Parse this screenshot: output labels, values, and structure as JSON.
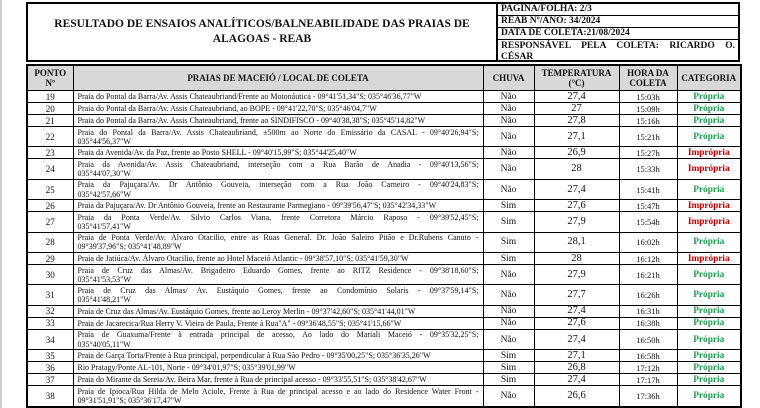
{
  "colors": {
    "propria_green": "#1e9e50",
    "impropria_red": "#c40000",
    "table_header_bg": "#d8d8d8",
    "border_black": "#000000"
  },
  "header": {
    "title": "RESULTADO DE ENSAIOS ANALÍTICOS/BALNEABILIDADE DAS PRAIAS DE ALAGOAS - REAB",
    "info_rows": [
      "PAGINA/FOLHA: 2/3",
      "REAB Nº/ANO: 34/2024",
      "DATA DE COLETA:21/08/2024",
      "RESPONSÁVEL PELA COLETA: RICARDO O. CÉSAR"
    ]
  },
  "table": {
    "columns": {
      "ponto": "PONTO\nNº",
      "local": "PRAIAS DE MACEIÓ / LOCAL DE COLETA",
      "chuva": "CHUVA",
      "temperatura": "TEMPERATURA\n(°C)",
      "hora": "HORA DA\nCOLETA",
      "categoria": "CATEGORIA"
    },
    "rows": [
      {
        "ponto": "19",
        "local_lines": [
          "Praia do Pontal da Barra/Av. Assis Chateaubriand/Frente ao Motonáutica - 09°41'51,34\"S; 035°46'36,77\"W"
        ],
        "chuva": "Não",
        "temperatura": "27,4",
        "hora": "15:03h",
        "categoria": "Própria"
      },
      {
        "ponto": "20",
        "local_lines": [
          "Praia do Pontal da Barra/Av. Assis Chateaubriand, ao BOPE - 09°41'22,70\"S; 035°46'04,7\"W"
        ],
        "chuva": "Não",
        "temperatura": "27",
        "hora": "15:09h",
        "categoria": "Própria"
      },
      {
        "ponto": "21",
        "local_lines": [
          "Praia do Pontal da Barra/Av. Assis Chateaubriand, frente ao SINDIFISCO - 09°40'38,38\"S; 035°45'14,82\"W"
        ],
        "chuva": "Não",
        "temperatura": "27,8",
        "hora": "15:16h",
        "categoria": "Própria"
      },
      {
        "ponto": "22",
        "local_lines": [
          "Praia do Pontal da Barra/Av. Assis Chateaubriand, ±500m ao Norte do Emissário da CASAL - 09°40'26,94\"S;",
          "035°44'56,37\"W"
        ],
        "chuva": "Não",
        "temperatura": "27,1",
        "hora": "15:21h",
        "categoria": "Própria"
      },
      {
        "ponto": "23",
        "local_lines": [
          "Praia da Avenida/Av. da Paz, frente ao Posto SHELL - 09°40'15,99\"S; 035°44'25,40\"W"
        ],
        "chuva": "Não",
        "temperatura": "26,9",
        "hora": "15:27h",
        "categoria": "Imprópria"
      },
      {
        "ponto": "24",
        "local_lines": [
          "Praia da Avenida/Av. Assis Chateaubriand, interseção com a Rua Barão de Anadia - 09°40'13,56\"S;",
          "035°44'07,30\"W"
        ],
        "chuva": "Não",
        "temperatura": "28",
        "hora": "15:33h",
        "categoria": "Imprópria"
      },
      {
        "ponto": "25",
        "local_lines": [
          "Praia da Pajuçara/Av. Dr Antônio Gouveia, interseção com a Rua João Carneiro - 09°40'24,83\"S;",
          "035°42'57,66\"W"
        ],
        "chuva": "Não",
        "temperatura": "27,4",
        "hora": "15:41h",
        "categoria": "Própria"
      },
      {
        "ponto": "26",
        "local_lines": [
          "Praia da Pajuçara/Av. Dr Antônio Gouveia, frente ao Restaurante Parmegiano - 09°39'56,47\"S; 035°42'34,33\"W"
        ],
        "chuva": "Sim",
        "temperatura": "27,6",
        "hora": "15:47h",
        "categoria": "Imprópria"
      },
      {
        "ponto": "27",
        "local_lines": [
          "Praia da Ponta Verde/Av. Silvio Carlos Viana, frente Corretora Márcio Raposo - 09°39'52,45\"S;",
          "035°41'57,41\"W"
        ],
        "chuva": "Sim",
        "temperatura": "27,9",
        "hora": "15:54h",
        "categoria": "Imprópria"
      },
      {
        "ponto": "28",
        "local_lines": [
          "Praia de Ponta Verde/Av. Álvaro Otacilio, entre as Ruas General. Dr. João Saleiro Pitão e Dr.Rubens Canuto -",
          "09°39'37,96\"S; 035°41'48,89\"W"
        ],
        "chuva": "Sim",
        "temperatura": "28,1",
        "hora": "16:02h",
        "categoria": "Própria"
      },
      {
        "ponto": "29",
        "local_lines": [
          "Praia de Jatiúca/Av. Álvaro Otacilio, frente ao Hotel Maceió Atlantic - 09°38'57,10\"S; 035°41'59,30\"W"
        ],
        "chuva": "Sim",
        "temperatura": "28",
        "hora": "16:12h",
        "categoria": "Imprópria"
      },
      {
        "ponto": "30",
        "local_lines": [
          "Praia de Cruz das Almas/Av. Brigadeiro Eduardo Gomes, frente ao RITZ Residence - 09°38'18,60\"S;",
          "035°41'53,53\"W"
        ],
        "chuva": "Não",
        "temperatura": "27,9",
        "hora": "16:21h",
        "categoria": "Própria"
      },
      {
        "ponto": "31",
        "local_lines": [
          "Praia de Cruz das Almas/ Av. Eustáquio Gomes, frente ao Condomínio Solaris - 09°37'59,14\"S;",
          "035°41'48,21\"W"
        ],
        "chuva": "Não",
        "temperatura": "27,7",
        "hora": "16:26h",
        "categoria": "Própria"
      },
      {
        "ponto": "32",
        "local_lines": [
          "Praia de Cruz das Almas/Av. Eustáquio Gomes, frente ao Leroy Merlin - 09°37'42,60\"S; 035°41'44,01\"W"
        ],
        "chuva": "Não",
        "temperatura": "27,4",
        "hora": "16:31h",
        "categoria": "Própria"
      },
      {
        "ponto": "33",
        "local_lines": [
          "Praia de Jacarecica/Rua Herry V. Vieira de Paula, Frente à Rua\"A\" - 09°36'48,55\"S; 035°41'15,66\"W"
        ],
        "chuva": "Não",
        "temperatura": "27,6",
        "hora": "16:38h",
        "categoria": "Própria"
      },
      {
        "ponto": "34",
        "local_lines": [
          "Praia de Guaxuma/Frente à entrada principal de acesso, Ao lado do Mariali Maceió - 09°35'32,25\"S;",
          "035°40'05,11\"W"
        ],
        "chuva": "Não",
        "temperatura": "27,4",
        "hora": "16:50h",
        "categoria": "Própria"
      },
      {
        "ponto": "35",
        "local_lines": [
          "Praia de Garça Torta/Frente à Rua principal, perpendicular à Rua São Pedro - 09°35'00,25\"S; 035°36'35,26\"W"
        ],
        "chuva": "Sim",
        "temperatura": "27,1",
        "hora": "16:58h",
        "categoria": "Própria"
      },
      {
        "ponto": "36",
        "local_lines": [
          "Rio Pratagy/Ponte AL-101, Norte - 09°34'01,97\"S; 035°39'01,99\"W"
        ],
        "chuva": "Sim",
        "temperatura": "26,8",
        "hora": "17:12h",
        "categoria": "Própria"
      },
      {
        "ponto": "37",
        "local_lines": [
          "Praia do Mirante da Sereia/Av. Beira Mar, frente à Rua de principal acesso - 09°33'55,51\"S; 035°38'42,67\"W"
        ],
        "chuva": "Sim",
        "temperatura": "27,4",
        "hora": "17:17h",
        "categoria": "Própria"
      },
      {
        "ponto": "38",
        "local_lines": [
          "Praia de Ipioca/Rua Hilda de Melo Aciole, Frente à Rua de principal acesso e ao lado do Residence Water Front -",
          "09°31'51,91\"S; 035°36'17,47\"W"
        ],
        "chuva": "Não",
        "temperatura": "26,6",
        "hora": "17:36h",
        "categoria": "Própria"
      }
    ]
  }
}
